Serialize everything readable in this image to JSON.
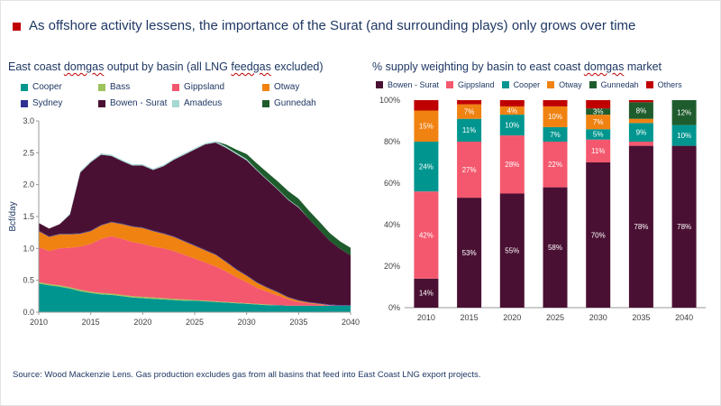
{
  "colors": {
    "navy": "#1F3864",
    "accent_red": "#C00000",
    "axis_text": "#404040",
    "axis_line": "#9a9a9a",
    "bar_label_text": "#ffffff"
  },
  "header": {
    "title": "As offshore activity lessens, the importance of the Surat (and surrounding plays) only grows over time"
  },
  "wavy_words": [
    "domgas",
    "feedgas"
  ],
  "source": "Source: Wood Mackenzie Lens. Gas production excludes gas from all basins that feed into East Coast LNG export projects.",
  "chart_data": [
    {
      "type": "area",
      "stacked": true,
      "title": "East coast domgas output by basin (all LNG feedgas excluded)",
      "xlabel": "",
      "ylabel": "Bcf/day",
      "ylim": [
        0,
        3.0
      ],
      "y_ticks": [
        "0.0",
        "0.5",
        "1.0",
        "1.5",
        "2.0",
        "2.5",
        "3.0"
      ],
      "x": [
        2010,
        2011,
        2012,
        2013,
        2014,
        2015,
        2016,
        2017,
        2018,
        2019,
        2020,
        2021,
        2022,
        2023,
        2024,
        2025,
        2026,
        2027,
        2028,
        2029,
        2030,
        2031,
        2032,
        2033,
        2034,
        2035,
        2036,
        2037,
        2038,
        2039,
        2040
      ],
      "x_ticks": [
        2010,
        2015,
        2020,
        2025,
        2030,
        2035,
        2040
      ],
      "grid": false,
      "legend_position": "top",
      "series": [
        {
          "name": "Cooper",
          "color": "#00968F",
          "values": [
            0.45,
            0.42,
            0.4,
            0.37,
            0.33,
            0.3,
            0.28,
            0.27,
            0.25,
            0.23,
            0.22,
            0.21,
            0.2,
            0.19,
            0.18,
            0.18,
            0.17,
            0.16,
            0.15,
            0.14,
            0.13,
            0.12,
            0.11,
            0.11,
            0.1,
            0.1,
            0.1,
            0.1,
            0.1,
            0.1,
            0.1
          ]
        },
        {
          "name": "Bass",
          "color": "#9DC35C",
          "values": [
            0.02,
            0.02,
            0.02,
            0.02,
            0.02,
            0.02,
            0.02,
            0.02,
            0.02,
            0.02,
            0.02,
            0.02,
            0.02,
            0.02,
            0.02,
            0.01,
            0.01,
            0.01,
            0.01,
            0.01,
            0.01,
            0.01,
            0.01,
            0,
            0,
            0,
            0,
            0,
            0,
            0,
            0
          ]
        },
        {
          "name": "Gippsland",
          "color": "#F4586E",
          "values": [
            0.55,
            0.52,
            0.58,
            0.62,
            0.68,
            0.75,
            0.85,
            0.9,
            0.88,
            0.85,
            0.83,
            0.8,
            0.78,
            0.75,
            0.7,
            0.65,
            0.6,
            0.55,
            0.48,
            0.4,
            0.33,
            0.25,
            0.2,
            0.15,
            0.1,
            0.06,
            0.04,
            0.02,
            0.01,
            0,
            0
          ]
        },
        {
          "name": "Otway",
          "color": "#F08212",
          "values": [
            0.25,
            0.22,
            0.22,
            0.21,
            0.2,
            0.2,
            0.21,
            0.22,
            0.23,
            0.24,
            0.25,
            0.24,
            0.23,
            0.22,
            0.21,
            0.2,
            0.19,
            0.18,
            0.15,
            0.12,
            0.1,
            0.08,
            0.06,
            0.05,
            0.03,
            0.02,
            0.01,
            0.01,
            0,
            0,
            0
          ]
        },
        {
          "name": "Sydney",
          "color": "#2E3192",
          "values": [
            0.01,
            0.01,
            0.01,
            0.01,
            0.01,
            0.01,
            0.01,
            0.01,
            0.01,
            0.01,
            0.01,
            0.01,
            0.01,
            0.01,
            0.01,
            0.01,
            0.01,
            0.01,
            0.01,
            0.01,
            0.01,
            0.01,
            0.01,
            0.01,
            0.01,
            0.01,
            0.01,
            0.01,
            0.01,
            0.01,
            0.01
          ]
        },
        {
          "name": "Bowen - Surat",
          "color": "#4A1033",
          "values": [
            0.12,
            0.12,
            0.15,
            0.3,
            0.95,
            1.07,
            1.1,
            1.03,
            0.98,
            0.95,
            0.97,
            0.95,
            1.05,
            1.2,
            1.35,
            1.5,
            1.65,
            1.75,
            1.78,
            1.8,
            1.8,
            1.75,
            1.68,
            1.6,
            1.52,
            1.45,
            1.3,
            1.15,
            1.0,
            0.88,
            0.78
          ]
        },
        {
          "name": "Amadeus",
          "color": "#A5D8D4",
          "values": [
            0,
            0,
            0,
            0.02,
            0.02,
            0.02,
            0.02,
            0.02,
            0.02,
            0.02,
            0.02,
            0.02,
            0.02,
            0.02,
            0.02,
            0.02,
            0.02,
            0.02,
            0.02,
            0.02,
            0.02,
            0.01,
            0.01,
            0.01,
            0.01,
            0.01,
            0,
            0,
            0,
            0,
            0
          ]
        },
        {
          "name": "Gunnedah",
          "color": "#1F5C2D",
          "values": [
            0,
            0,
            0,
            0,
            0,
            0,
            0,
            0,
            0,
            0,
            0,
            0,
            0,
            0,
            0,
            0,
            0,
            0,
            0.03,
            0.05,
            0.08,
            0.1,
            0.11,
            0.12,
            0.13,
            0.13,
            0.13,
            0.13,
            0.12,
            0.12,
            0.12
          ]
        }
      ]
    },
    {
      "type": "bar",
      "stacked": true,
      "title": "% supply weighting by basin to east coast domgas market",
      "xlabel": "",
      "ylabel": "",
      "ylim": [
        0,
        100
      ],
      "y_ticks": [
        "0%",
        "20%",
        "40%",
        "60%",
        "80%",
        "100%"
      ],
      "categories": [
        "2010",
        "2015",
        "2020",
        "2025",
        "2030",
        "2035",
        "2040"
      ],
      "grid": false,
      "legend_position": "top",
      "label_min": 3,
      "unlabeled_series": [
        "Others"
      ],
      "series": [
        {
          "name": "Bowen - Surat",
          "color": "#4A1033",
          "values": [
            14,
            53,
            55,
            58,
            70,
            78,
            78
          ]
        },
        {
          "name": "Gippsland",
          "color": "#F4586E",
          "values": [
            42,
            27,
            28,
            22,
            11,
            2,
            0
          ]
        },
        {
          "name": "Cooper",
          "color": "#00968F",
          "values": [
            24,
            11,
            10,
            7,
            5,
            9,
            10
          ]
        },
        {
          "name": "Otway",
          "color": "#F08212",
          "values": [
            15,
            7,
            4,
            10,
            7,
            2,
            0
          ]
        },
        {
          "name": "Gunnedah",
          "color": "#1F5C2D",
          "values": [
            0,
            0,
            0,
            0,
            3,
            8,
            12
          ]
        },
        {
          "name": "Others",
          "color": "#C00000",
          "values": [
            5,
            2,
            3,
            3,
            4,
            1,
            0
          ]
        }
      ]
    }
  ]
}
